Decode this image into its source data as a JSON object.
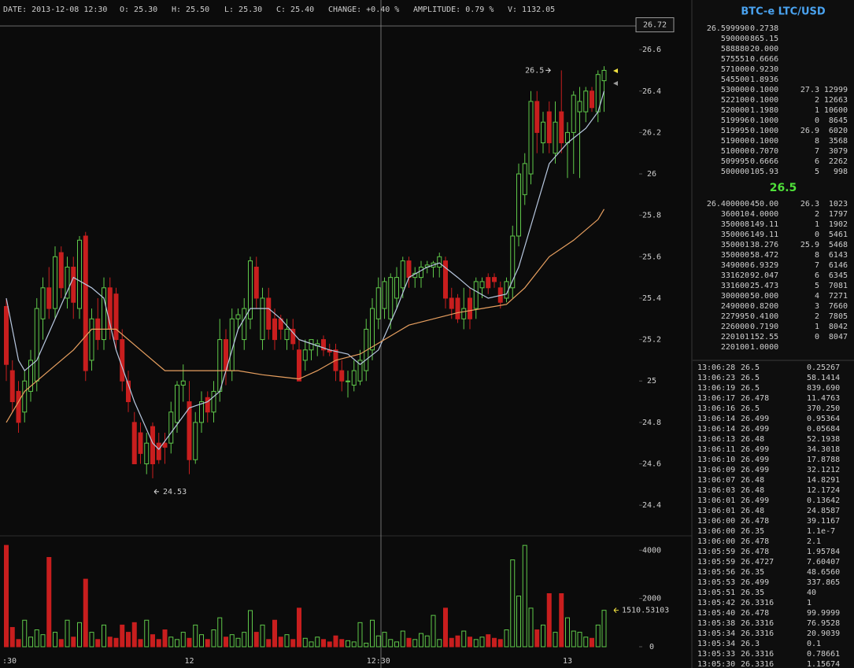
{
  "chart_data": {
    "type": "candlestick",
    "categories": [
      ":30",
      null,
      null,
      null,
      null,
      null,
      null,
      null,
      null,
      null,
      null,
      null,
      null,
      null,
      null,
      null,
      null,
      null,
      null,
      null,
      null,
      null,
      null,
      null,
      null,
      null,
      null,
      null,
      null,
      null,
      "12",
      null,
      null,
      null,
      null,
      null,
      null,
      null,
      null,
      null,
      null,
      null,
      null,
      null,
      null,
      null,
      null,
      null,
      null,
      null,
      null,
      null,
      null,
      null,
      null,
      null,
      null,
      null,
      null,
      null,
      null,
      "12:30",
      null,
      null,
      null,
      null,
      null,
      null,
      null,
      null,
      null,
      null,
      null,
      null,
      null,
      null,
      null,
      null,
      null,
      null,
      null,
      null,
      null,
      null,
      null,
      null,
      null,
      null,
      null,
      null,
      null,
      null,
      "13",
      null,
      null,
      null,
      null,
      null,
      null
    ],
    "open": [
      25.36,
      25.05,
      24.95,
      24.85,
      24.95,
      25.0,
      25.3,
      25.45,
      25.35,
      25.62,
      25.4,
      25.55,
      25.35,
      25.7,
      25.1,
      25.3,
      25.2,
      25.45,
      25.42,
      25.2,
      25.0,
      24.8,
      24.75,
      24.6,
      24.78,
      24.7,
      24.7,
      24.7,
      24.8,
      24.98,
      24.9,
      24.62,
      24.8,
      24.92,
      24.85,
      24.95,
      25.2,
      25.05,
      25.3,
      25.2,
      25.3,
      25.55,
      25.2,
      25.4,
      25.3,
      25.3,
      25.2,
      25.25,
      25.15,
      25.1,
      25.15,
      25.17,
      25.2,
      25.15,
      25.15,
      25.05,
      25.0,
      24.98,
      25.0,
      25.05,
      25.15,
      25.3,
      25.35,
      25.3,
      25.4,
      25.45,
      25.58,
      25.5,
      25.5,
      25.55,
      25.55,
      25.55,
      25.58,
      25.4,
      25.4,
      25.3,
      25.4,
      25.35,
      25.45,
      25.5,
      25.5,
      25.45,
      25.4,
      25.45,
      25.7,
      25.9,
      26.0,
      26.35,
      26.15,
      26.3,
      26.1,
      26.3,
      26.15,
      26.2,
      26.3,
      26.3,
      26.4,
      26.3,
      26.45
    ],
    "high": [
      25.4,
      25.1,
      25.0,
      25.05,
      25.15,
      25.4,
      25.5,
      25.55,
      25.65,
      25.65,
      25.6,
      25.6,
      25.7,
      25.72,
      25.35,
      25.4,
      25.5,
      25.5,
      25.45,
      25.25,
      25.05,
      24.85,
      24.8,
      24.75,
      24.8,
      24.75,
      24.75,
      24.9,
      25.0,
      25.08,
      25.0,
      24.85,
      24.95,
      24.95,
      25.0,
      25.3,
      25.25,
      25.35,
      25.35,
      25.4,
      25.6,
      25.6,
      25.45,
      25.45,
      25.35,
      25.32,
      25.3,
      25.3,
      25.2,
      25.2,
      25.2,
      25.2,
      25.22,
      25.18,
      25.18,
      25.1,
      25.05,
      25.1,
      25.15,
      25.3,
      25.4,
      25.5,
      25.5,
      25.52,
      25.55,
      25.6,
      25.6,
      25.55,
      25.58,
      25.58,
      25.58,
      25.62,
      25.6,
      25.45,
      25.42,
      25.45,
      25.45,
      25.5,
      25.5,
      25.52,
      25.52,
      25.48,
      25.5,
      25.75,
      26.05,
      26.1,
      26.4,
      26.4,
      26.3,
      26.35,
      26.35,
      26.5,
      26.25,
      26.4,
      26.42,
      26.42,
      26.42,
      26.5,
      26.52
    ],
    "low": [
      25.0,
      24.85,
      24.75,
      24.8,
      24.9,
      24.95,
      25.2,
      25.3,
      25.3,
      25.4,
      25.35,
      25.3,
      25.3,
      25.0,
      25.05,
      25.15,
      25.15,
      25.2,
      25.15,
      24.95,
      24.85,
      24.6,
      24.6,
      24.55,
      24.53,
      24.6,
      24.6,
      24.65,
      24.75,
      24.9,
      24.55,
      24.6,
      24.75,
      24.8,
      24.8,
      24.9,
      24.98,
      25.0,
      25.25,
      25.15,
      25.25,
      25.35,
      25.15,
      25.2,
      25.15,
      25.2,
      25.15,
      25.15,
      25.0,
      25.05,
      25.1,
      25.12,
      25.12,
      25.12,
      25.0,
      24.95,
      24.92,
      24.95,
      24.98,
      25.0,
      25.1,
      25.25,
      25.3,
      25.25,
      25.35,
      25.4,
      25.45,
      25.45,
      25.45,
      25.52,
      25.5,
      25.5,
      25.35,
      25.3,
      25.28,
      25.25,
      25.25,
      25.3,
      25.4,
      25.42,
      25.45,
      25.35,
      25.38,
      25.4,
      25.65,
      25.85,
      25.95,
      26.1,
      26.1,
      26.1,
      26.05,
      26.1,
      25.98,
      26.0,
      25.98,
      26.25,
      26.3,
      26.25,
      26.3
    ],
    "close": [
      25.08,
      24.9,
      24.8,
      25.0,
      25.1,
      25.35,
      25.45,
      25.35,
      25.6,
      25.45,
      25.55,
      25.38,
      25.68,
      25.05,
      25.3,
      25.2,
      25.45,
      25.25,
      25.2,
      25.0,
      24.9,
      24.6,
      24.65,
      24.7,
      24.6,
      24.62,
      24.68,
      24.85,
      24.98,
      25.0,
      24.62,
      24.8,
      24.9,
      24.85,
      24.95,
      25.2,
      25.05,
      25.3,
      25.32,
      25.35,
      25.58,
      25.4,
      25.4,
      25.25,
      25.2,
      25.25,
      25.25,
      25.18,
      25.0,
      25.15,
      25.2,
      25.18,
      25.15,
      25.14,
      25.05,
      25.0,
      25.0,
      25.05,
      25.1,
      25.25,
      25.35,
      25.45,
      25.48,
      25.5,
      25.5,
      25.58,
      25.5,
      25.52,
      25.55,
      25.56,
      25.57,
      25.6,
      25.4,
      25.35,
      25.3,
      25.35,
      25.3,
      25.48,
      25.48,
      25.45,
      25.48,
      25.38,
      25.48,
      25.7,
      26.0,
      26.05,
      26.35,
      26.2,
      26.25,
      26.15,
      26.25,
      26.15,
      26.2,
      26.38,
      26.35,
      26.4,
      26.32,
      26.48,
      26.5
    ],
    "up_color": "#5fc84a",
    "down_color": "#c81e1e",
    "ylim": [
      24.26,
      26.76
    ],
    "yticks": [
      24.4,
      24.6,
      24.8,
      25,
      25.2,
      25.4,
      25.6,
      25.8,
      26,
      26.2,
      26.4,
      26.6
    ],
    "lines": [
      {
        "color": "#b8c8e0",
        "x": [
          0,
          2,
          3,
          5,
          8,
          11,
          14,
          16,
          18,
          21,
          24,
          25,
          27,
          30,
          33,
          35,
          38,
          40,
          43,
          45,
          48,
          51,
          53,
          56,
          58,
          61,
          64,
          66,
          69,
          71,
          74,
          76,
          79,
          82,
          84,
          87,
          89,
          92,
          95,
          97,
          98
        ],
        "values": [
          25.4,
          25.1,
          25.05,
          25.1,
          25.3,
          25.5,
          25.45,
          25.4,
          25.15,
          24.9,
          24.7,
          24.67,
          24.75,
          24.87,
          24.9,
          24.95,
          25.25,
          25.35,
          25.35,
          25.3,
          25.2,
          25.17,
          25.15,
          25.13,
          25.08,
          25.15,
          25.35,
          25.5,
          25.55,
          25.57,
          25.5,
          25.45,
          25.4,
          25.42,
          25.55,
          25.85,
          26.05,
          26.15,
          26.22,
          26.3,
          26.4
        ]
      },
      {
        "color": "#e8a060",
        "x": [
          0,
          3,
          7,
          11,
          14,
          18,
          22,
          26,
          30,
          34,
          38,
          42,
          45,
          48,
          51,
          54,
          58,
          62,
          66,
          70,
          74,
          78,
          82,
          85,
          89,
          93,
          97,
          98
        ],
        "values": [
          24.8,
          24.95,
          25.05,
          25.15,
          25.25,
          25.25,
          25.15,
          25.05,
          25.05,
          25.05,
          25.05,
          25.03,
          25.02,
          25.01,
          25.05,
          25.1,
          25.13,
          25.2,
          25.27,
          25.3,
          25.33,
          25.35,
          25.37,
          25.45,
          25.6,
          25.68,
          25.78,
          25.83
        ]
      }
    ],
    "annotations": {
      "high_label": 26.5,
      "high_index": 91,
      "low_label": 24.53,
      "low_index": 24,
      "current_price": 26.72
    },
    "volume": {
      "values": [
        4200,
        800,
        300,
        1100,
        400,
        700,
        500,
        3700,
        600,
        300,
        1100,
        400,
        1000,
        2800,
        600,
        300,
        900,
        400,
        350,
        900,
        600,
        1000,
        300,
        1100,
        500,
        300,
        700,
        400,
        300,
        600,
        350,
        900,
        500,
        300,
        700,
        1200,
        400,
        500,
        350,
        600,
        1500,
        600,
        900,
        300,
        1100,
        400,
        500,
        300,
        1600,
        350,
        200,
        400,
        300,
        200,
        450,
        300,
        250,
        200,
        1000,
        150,
        1100,
        450,
        600,
        300,
        200,
        650,
        350,
        300,
        550,
        450,
        1300,
        300,
        1600,
        350,
        450,
        650,
        400,
        300,
        400,
        500,
        350,
        300,
        700,
        3600,
        2100,
        4200,
        1600,
        700,
        900,
        2200,
        600,
        2200,
        1200,
        650,
        600,
        400,
        350,
        900,
        1510.53103
      ],
      "ylim": [
        0,
        4400
      ],
      "yticks": [
        0,
        2000,
        4000
      ],
      "label_color": "#f0e040"
    }
  },
  "header": [
    "DATE: 2013-12-08 12:30",
    "O: 25.30",
    "H: 25.50",
    "L: 25.30",
    "C: 25.40",
    "CHANGE: +0.40 %",
    "AMPLITUDE: 0.79 %",
    "V: 1132.05"
  ],
  "sidebar": {
    "title": "BTC-e LTC/USD",
    "asks": [
      [
        "26.599990",
        "0.2738"
      ],
      [
        "590000",
        "865.15"
      ],
      [
        "588880",
        "20.000"
      ],
      [
        "575551",
        "0.6666"
      ],
      [
        "571000",
        "0.9230"
      ],
      [
        "545500",
        "1.8936"
      ],
      [
        "530000",
        "0.1000",
        "27.3",
        "12999"
      ],
      [
        "522100",
        "0.1000",
        "2",
        "12663"
      ],
      [
        "520000",
        "1.1980",
        "1",
        "10600"
      ],
      [
        "519996",
        "0.1000",
        "0",
        "8645"
      ],
      [
        "519995",
        "0.1000",
        "26.9",
        "6020"
      ],
      [
        "519000",
        "0.1000",
        "8",
        "3568"
      ],
      [
        "510000",
        "0.7070",
        "7",
        "3079"
      ],
      [
        "509995",
        "0.6666",
        "6",
        "2262"
      ],
      [
        "500000",
        "105.93",
        "5",
        "998"
      ]
    ],
    "last_price": "26.5",
    "bids": [
      [
        "26.400000",
        "450.00",
        "26.3",
        "1023"
      ],
      [
        "360010",
        "4.0000",
        "2",
        "1797"
      ],
      [
        "350008",
        "149.11",
        "1",
        "1902"
      ],
      [
        "350006",
        "149.11",
        "0",
        "5461"
      ],
      [
        "350001",
        "38.276",
        "25.9",
        "5468"
      ],
      [
        "350000",
        "58.472",
        "8",
        "6143"
      ],
      [
        "349000",
        "6.9329",
        "7",
        "6146"
      ],
      [
        "331620",
        "92.047",
        "6",
        "6345"
      ],
      [
        "331600",
        "25.473",
        "5",
        "7081"
      ],
      [
        "300000",
        "50.000",
        "4",
        "7271"
      ],
      [
        "249000",
        "0.8200",
        "3",
        "7660"
      ],
      [
        "227995",
        "0.4100",
        "2",
        "7805"
      ],
      [
        "226000",
        "0.7190",
        "1",
        "8042"
      ],
      [
        "220101",
        "152.55",
        "0",
        "8047"
      ],
      [
        "220100",
        "1.0000"
      ]
    ],
    "buy_color": "#5fd84a",
    "sell_color": "#e05a5a",
    "trades": [
      [
        "13:06:28",
        "26.5",
        "0.25267",
        "buy"
      ],
      [
        "13:06:23",
        "26.5",
        "58.1414",
        "buy"
      ],
      [
        "13:06:19",
        "26.5",
        "839.690",
        "buy"
      ],
      [
        "13:06:17",
        "26.478",
        "11.4763",
        "sell"
      ],
      [
        "13:06:16",
        "26.5",
        "370.250",
        "buy"
      ],
      [
        "13:06:14",
        "26.499",
        "0.95364",
        "sell"
      ],
      [
        "13:06:14",
        "26.499",
        "0.05684",
        "buy"
      ],
      [
        "13:06:13",
        "26.48",
        "52.1938",
        "sell"
      ],
      [
        "13:06:11",
        "26.499",
        "34.3018",
        "buy"
      ],
      [
        "13:06:10",
        "26.499",
        "17.8788",
        "sell"
      ],
      [
        "13:06:09",
        "26.499",
        "32.1212",
        "buy"
      ],
      [
        "13:06:07",
        "26.48",
        "14.8291",
        "sell"
      ],
      [
        "13:06:03",
        "26.48",
        "12.1724",
        "sell"
      ],
      [
        "13:06:01",
        "26.499",
        "0.13642",
        "buy"
      ],
      [
        "13:06:01",
        "26.48",
        "24.8587",
        "sell"
      ],
      [
        "13:06:00",
        "26.478",
        "39.1167",
        "buy"
      ],
      [
        "13:06:00",
        "26.35",
        "1.1e-7",
        "sell"
      ],
      [
        "13:06:00",
        "26.478",
        "2.1",
        "buy"
      ],
      [
        "13:05:59",
        "26.478",
        "1.95784",
        "sell"
      ],
      [
        "13:05:59",
        "26.4727",
        "7.60407",
        "buy"
      ],
      [
        "13:05:56",
        "26.35",
        "48.6560",
        "sell"
      ],
      [
        "13:05:53",
        "26.499",
        "337.865",
        "buy"
      ],
      [
        "13:05:51",
        "26.35",
        "40",
        "sell"
      ],
      [
        "13:05:42",
        "26.3316",
        "1",
        "sell"
      ],
      [
        "13:05:40",
        "26.478",
        "99.9999",
        "buy"
      ],
      [
        "13:05:38",
        "26.3316",
        "76.9528",
        "buy"
      ],
      [
        "13:05:34",
        "26.3316",
        "20.9039",
        "buy"
      ],
      [
        "13:05:34",
        "26.3",
        "0.1",
        "sell"
      ],
      [
        "13:05:33",
        "26.3316",
        "0.78661",
        "buy"
      ],
      [
        "13:05:30",
        "26.3316",
        "1.15674",
        "sell"
      ]
    ]
  }
}
